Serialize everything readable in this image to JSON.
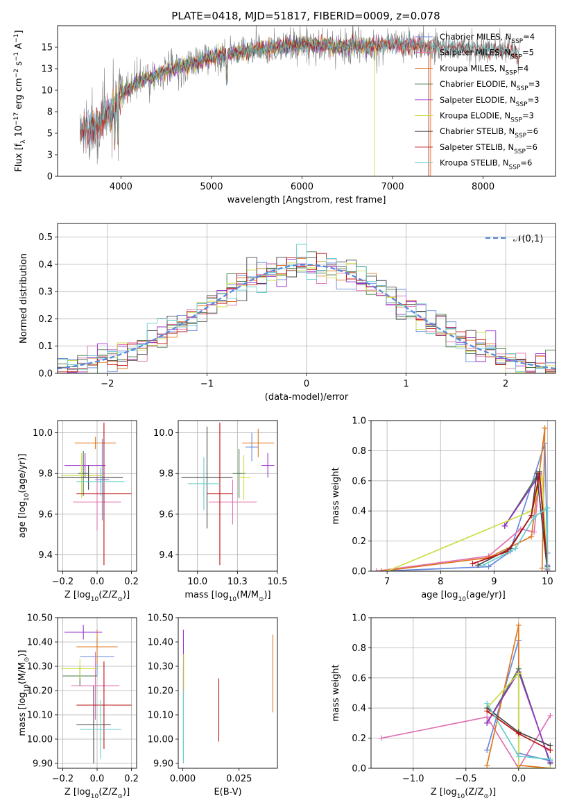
{
  "figure": {
    "title": "PLATE=0418, MJD=51817, FIBERID=0009, z=0.078"
  },
  "chart_data": [
    {
      "type": "line",
      "name": "spectrum",
      "xlabel": "wavelength [Angstrom, rest frame]",
      "ylabel": "Flux [f_λ 10^-17 erg cm^-2 s^-1 A^-1]",
      "xlim": [
        3300,
        8800
      ],
      "ylim": [
        0,
        17.5
      ],
      "xticks": [
        4000,
        5000,
        6000,
        7000,
        8000
      ],
      "yticks": [
        0.0,
        2.5,
        5.0,
        7.5,
        10.0,
        12.5,
        15.0
      ],
      "series": [
        {
          "name": "Chabrier MILES, N_SSP=4",
          "color": "#6688dd",
          "x_range": [
            3550,
            7400
          ]
        },
        {
          "name": "Salpeter MILES, N_SSP=5",
          "color": "#e070b0",
          "x_range": [
            3550,
            7420
          ]
        },
        {
          "name": "Kroupa MILES, N_SSP=4",
          "color": "#e07820",
          "x_range": [
            3550,
            7420
          ]
        },
        {
          "name": "Chabrier ELODIE, N_SSP=3",
          "color": "#447744",
          "x_range": [
            3900,
            6800
          ]
        },
        {
          "name": "Salpeter ELODIE, N_SSP=3",
          "color": "#9933cc",
          "x_range": [
            3900,
            6800
          ]
        },
        {
          "name": "Kroupa ELODIE, N_SSP=3",
          "color": "#ccdd44",
          "x_range": [
            3900,
            6800
          ]
        },
        {
          "name": "Chabrier STELIB, N_SSP=6",
          "color": "#444444",
          "x_range": [
            3550,
            8400
          ]
        },
        {
          "name": "Salpeter STELIB, N_SSP=6",
          "color": "#bb1111",
          "x_range": [
            3550,
            8400
          ]
        },
        {
          "name": "Kroupa STELIB, N_SSP=6",
          "color": "#66cccc",
          "x_range": [
            3550,
            8400
          ]
        }
      ],
      "data_line": {
        "color": "#808080",
        "x_range": [
          3550,
          8400
        ]
      },
      "continuum_points": [
        {
          "x": 3550,
          "y": 5.2
        },
        {
          "x": 3700,
          "y": 5.8
        },
        {
          "x": 3900,
          "y": 7.5
        },
        {
          "x": 4000,
          "y": 9.5
        },
        {
          "x": 4200,
          "y": 11.0
        },
        {
          "x": 4500,
          "y": 12.2
        },
        {
          "x": 5000,
          "y": 13.8
        },
        {
          "x": 5500,
          "y": 14.8
        },
        {
          "x": 6000,
          "y": 15.3
        },
        {
          "x": 6500,
          "y": 15.0
        },
        {
          "x": 7000,
          "y": 15.4
        },
        {
          "x": 7500,
          "y": 15.0
        },
        {
          "x": 8000,
          "y": 14.7
        },
        {
          "x": 8400,
          "y": 14.4
        }
      ]
    },
    {
      "type": "histogram",
      "name": "residuals",
      "xlabel": "(data-model)/error",
      "ylabel": "Normed distribution",
      "xlim": [
        -2.5,
        2.5
      ],
      "ylim": [
        0,
        0.55
      ],
      "xticks": [
        -2,
        -1,
        0,
        1,
        2
      ],
      "yticks": [
        0.0,
        0.1,
        0.2,
        0.3,
        0.4,
        0.5
      ],
      "grid": true,
      "bin_width": 0.1,
      "bin_start": -2.5,
      "bins": 50,
      "reference_curve": {
        "name": "𝒩(0,1)",
        "color": "#5588dd",
        "style": "dashed",
        "legend": "top-right"
      }
    },
    {
      "type": "errorbar",
      "name": "Z-age",
      "xlabel": "Z [log10(Z/Z⊙)]",
      "ylabel": "age [log10(age/yr)]",
      "xlim": [
        -0.23,
        0.23
      ],
      "ylim": [
        9.32,
        10.06
      ],
      "xticks": [
        -0.2,
        0.0,
        0.2
      ],
      "yticks": [
        9.4,
        9.6,
        9.8,
        10.0
      ],
      "grid": true,
      "points": [
        {
          "x": 0.03,
          "y": 9.77,
          "xerr": 0.04,
          "yerr": 0.2,
          "color": "#6688dd"
        },
        {
          "x": 0.0,
          "y": 9.66,
          "xerr": 0.14,
          "yerr": 0.14,
          "color": "#e070b0"
        },
        {
          "x": -0.01,
          "y": 9.95,
          "xerr": 0.12,
          "yerr": 0.03,
          "color": "#e07820"
        },
        {
          "x": -0.08,
          "y": 9.8,
          "xerr": 0.03,
          "yerr": 0.11,
          "color": "#447744"
        },
        {
          "x": -0.07,
          "y": 9.84,
          "xerr": 0.12,
          "yerr": 0.06,
          "color": "#9933cc"
        },
        {
          "x": -0.09,
          "y": 9.79,
          "xerr": 0.12,
          "yerr": 0.11,
          "color": "#ccdd44"
        },
        {
          "x": -0.05,
          "y": 9.78,
          "xerr": 0.2,
          "yerr": 0.06,
          "color": "#444444"
        },
        {
          "x": 0.04,
          "y": 9.7,
          "xerr": 0.16,
          "yerr": 0.35,
          "color": "#bb1111"
        },
        {
          "x": 0.02,
          "y": 9.76,
          "xerr": 0.14,
          "yerr": 0.07,
          "color": "#66cccc"
        }
      ]
    },
    {
      "type": "errorbar",
      "name": "mass-age",
      "xlabel": "mass [log10(M/M⊙)]",
      "ylabel": "",
      "xlim": [
        9.88,
        10.5
      ],
      "ylim": [
        9.32,
        10.06
      ],
      "xticks": [
        10.0,
        10.25,
        10.5
      ],
      "yticks": [
        9.4,
        9.6,
        9.8,
        10.0
      ],
      "grid": true,
      "points": [
        {
          "x": 10.34,
          "y": 9.93,
          "xerr": 0.04,
          "yerr": 0.07,
          "color": "#6688dd"
        },
        {
          "x": 10.22,
          "y": 9.66,
          "xerr": 0.15,
          "yerr": 0.11,
          "color": "#e070b0"
        },
        {
          "x": 10.38,
          "y": 9.95,
          "xerr": 0.1,
          "yerr": 0.07,
          "color": "#e07820"
        },
        {
          "x": 10.26,
          "y": 9.8,
          "xerr": 0.04,
          "yerr": 0.12,
          "color": "#447744"
        },
        {
          "x": 10.44,
          "y": 9.84,
          "xerr": 0.04,
          "yerr": 0.06,
          "color": "#9933cc"
        },
        {
          "x": 10.29,
          "y": 9.78,
          "xerr": 0.04,
          "yerr": 0.11,
          "color": "#ccdd44"
        },
        {
          "x": 10.06,
          "y": 9.78,
          "xerr": 0.16,
          "yerr": 0.25,
          "color": "#444444"
        },
        {
          "x": 10.14,
          "y": 9.7,
          "xerr": 0.08,
          "yerr": 0.35,
          "color": "#bb1111"
        },
        {
          "x": 10.04,
          "y": 9.75,
          "xerr": 0.1,
          "yerr": 0.13,
          "color": "#66cccc"
        }
      ]
    },
    {
      "type": "line",
      "name": "age-massweight",
      "xlabel": "age [log10(age/yr)]",
      "ylabel": "mass weight",
      "xlim": [
        6.7,
        10.15
      ],
      "ylim": [
        0,
        1.0
      ],
      "xticks": [
        7,
        8,
        9,
        10
      ],
      "yticks": [
        0.0,
        0.2,
        0.4,
        0.6,
        0.8,
        1.0
      ],
      "grid": true,
      "series": [
        {
          "color": "#6688dd",
          "points": [
            [
              6.9,
              0.0
            ],
            [
              8.9,
              0.03
            ],
            [
              9.3,
              0.13
            ],
            [
              9.95,
              0.85
            ],
            [
              10.0,
              0.12
            ]
          ]
        },
        {
          "color": "#e070b0",
          "points": [
            [
              6.8,
              0.0
            ],
            [
              8.9,
              0.1
            ],
            [
              9.5,
              0.28
            ],
            [
              9.75,
              0.26
            ],
            [
              9.85,
              0.63
            ],
            [
              10.0,
              0.01
            ]
          ]
        },
        {
          "color": "#e07820",
          "points": [
            [
              6.9,
              0.0
            ],
            [
              8.9,
              0.09
            ],
            [
              9.7,
              0.23
            ],
            [
              9.95,
              0.95
            ],
            [
              9.9,
              0.02
            ]
          ]
        },
        {
          "color": "#447744",
          "points": [
            [
              9.2,
              0.3
            ],
            [
              9.85,
              0.66
            ],
            [
              10.0,
              0.03
            ]
          ]
        },
        {
          "color": "#9933cc",
          "points": [
            [
              9.2,
              0.3
            ],
            [
              9.85,
              0.64
            ],
            [
              10.0,
              0.04
            ]
          ]
        },
        {
          "color": "#ccdd44",
          "points": [
            [
              7.0,
              0.0
            ],
            [
              9.7,
              0.4
            ],
            [
              9.9,
              0.63
            ],
            [
              10.0,
              0.0
            ]
          ]
        },
        {
          "color": "#444444",
          "points": [
            [
              8.7,
              0.04
            ],
            [
              9.3,
              0.15
            ],
            [
              9.7,
              0.37
            ],
            [
              9.8,
              0.65
            ],
            [
              10.0,
              0.0
            ]
          ]
        },
        {
          "color": "#bb1111",
          "points": [
            [
              8.6,
              0.05
            ],
            [
              9.25,
              0.13
            ],
            [
              9.7,
              0.37
            ],
            [
              9.85,
              0.65
            ],
            [
              10.0,
              0.02
            ]
          ]
        },
        {
          "color": "#66cccc",
          "points": [
            [
              8.8,
              0.04
            ],
            [
              9.4,
              0.15
            ],
            [
              9.75,
              0.36
            ],
            [
              10.0,
              0.42
            ],
            [
              10.0,
              0.02
            ]
          ]
        }
      ]
    },
    {
      "type": "errorbar",
      "name": "Z-mass",
      "xlabel": "Z [log10(Z/Z⊙)]",
      "ylabel": "mass [log10(M/M⊙)]",
      "xlim": [
        -0.23,
        0.23
      ],
      "ylim": [
        9.88,
        10.5
      ],
      "xticks": [
        -0.2,
        0.0,
        0.2
      ],
      "yticks": [
        9.9,
        10.0,
        10.1,
        10.2,
        10.3,
        10.4,
        10.5
      ],
      "grid": true,
      "points": [
        {
          "x": 0.0,
          "y": 10.34,
          "xerr": 0.1,
          "yerr": 0.08,
          "color": "#6688dd"
        },
        {
          "x": -0.01,
          "y": 10.22,
          "xerr": 0.14,
          "yerr": 0.14,
          "color": "#e070b0"
        },
        {
          "x": 0.0,
          "y": 10.38,
          "xerr": 0.12,
          "yerr": 0.07,
          "color": "#e07820"
        },
        {
          "x": -0.1,
          "y": 10.26,
          "xerr": 0.1,
          "yerr": 0.04,
          "color": "#447744"
        },
        {
          "x": -0.08,
          "y": 10.44,
          "xerr": 0.11,
          "yerr": 0.03,
          "color": "#9933cc"
        },
        {
          "x": -0.1,
          "y": 10.29,
          "xerr": 0.11,
          "yerr": 0.04,
          "color": "#ccdd44"
        },
        {
          "x": -0.02,
          "y": 10.06,
          "xerr": 0.1,
          "yerr": 0.16,
          "color": "#444444"
        },
        {
          "x": 0.04,
          "y": 10.14,
          "xerr": 0.16,
          "yerr": 0.18,
          "color": "#bb1111"
        },
        {
          "x": 0.02,
          "y": 10.04,
          "xerr": 0.12,
          "yerr": 0.12,
          "color": "#66cccc"
        }
      ]
    },
    {
      "type": "errorbar",
      "name": "EBV-mass",
      "xlabel": "E(B-V)",
      "ylabel": "",
      "xlim": [
        -0.002,
        0.042
      ],
      "ylim": [
        9.88,
        10.5
      ],
      "xticks": [
        0.0,
        0.025
      ],
      "yticks": [
        9.9,
        10.0,
        10.1,
        10.2,
        10.3,
        10.4,
        10.5
      ],
      "grid": false,
      "points": [
        {
          "x": 0.0003,
          "y": 10.1,
          "xerr": 0.0,
          "yerr": 0.2,
          "color": "#6688dd"
        },
        {
          "x": 0.0003,
          "y": 10.2,
          "xerr": 0.0,
          "yerr": 0.25,
          "color": "#9933cc"
        },
        {
          "x": 0.0004,
          "y": 10.27,
          "xerr": 0.0,
          "yerr": 0.08,
          "color": "#ccdd44"
        },
        {
          "x": 0.0003,
          "y": 10.05,
          "xerr": 0.0,
          "yerr": 0.15,
          "color": "#66cccc"
        },
        {
          "x": 0.016,
          "y": 10.12,
          "xerr": 0.0,
          "yerr": 0.13,
          "color": "#bb1111"
        },
        {
          "x": 0.04,
          "y": 10.27,
          "xerr": 0.0,
          "yerr": 0.16,
          "color": "#e07820"
        }
      ]
    },
    {
      "type": "line",
      "name": "Z-massweight",
      "xlabel": "Z [log10(Z/Z⊙)]",
      "ylabel": "mass weight",
      "xlim": [
        -1.4,
        0.35
      ],
      "ylim": [
        0,
        1.0
      ],
      "xticks": [
        -1.0,
        -0.5,
        0.0
      ],
      "yticks": [
        0.0,
        0.2,
        0.4,
        0.6,
        0.8,
        1.0
      ],
      "grid": true,
      "series": [
        {
          "color": "#6688dd",
          "points": [
            [
              -0.3,
              0.12
            ],
            [
              0.0,
              0.85
            ],
            [
              0.0,
              0.1
            ],
            [
              0.3,
              0.05
            ]
          ]
        },
        {
          "color": "#e070b0",
          "points": [
            [
              -1.3,
              0.2
            ],
            [
              -0.3,
              0.34
            ],
            [
              0.0,
              0.0
            ],
            [
              0.3,
              0.35
            ]
          ]
        },
        {
          "color": "#e07820",
          "points": [
            [
              -0.3,
              0.02
            ],
            [
              0.0,
              0.95
            ],
            [
              0.0,
              0.02
            ],
            [
              0.3,
              0.0
            ]
          ]
        },
        {
          "color": "#447744",
          "points": [
            [
              -0.3,
              0.3
            ],
            [
              0.0,
              0.66
            ],
            [
              0.3,
              0.03
            ]
          ]
        },
        {
          "color": "#9933cc",
          "points": [
            [
              -0.3,
              0.3
            ],
            [
              0.0,
              0.64
            ],
            [
              0.3,
              0.04
            ]
          ]
        },
        {
          "color": "#ccdd44",
          "points": [
            [
              -0.3,
              0.4
            ],
            [
              0.0,
              0.63
            ],
            [
              0.0,
              0.0
            ],
            [
              0.3,
              0.0
            ]
          ]
        },
        {
          "color": "#444444",
          "points": [
            [
              -0.3,
              0.4
            ],
            [
              0.0,
              0.24
            ],
            [
              0.3,
              0.15
            ]
          ]
        },
        {
          "color": "#bb1111",
          "points": [
            [
              -0.3,
              0.38
            ],
            [
              0.0,
              0.23
            ],
            [
              0.3,
              0.12
            ]
          ]
        },
        {
          "color": "#66cccc",
          "points": [
            [
              -0.3,
              0.43
            ],
            [
              0.0,
              0.08
            ],
            [
              0.3,
              0.06
            ]
          ]
        }
      ]
    }
  ]
}
